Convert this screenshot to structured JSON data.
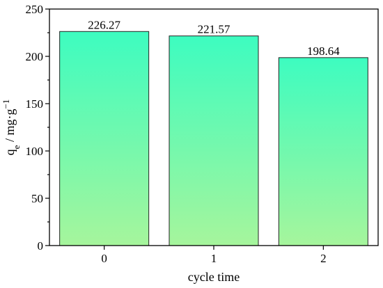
{
  "chart_data": {
    "type": "bar",
    "categories": [
      "0",
      "1",
      "2"
    ],
    "values": [
      226.27,
      221.57,
      198.64
    ],
    "data_labels": [
      "226.27",
      "221.57",
      "198.64"
    ],
    "title": "",
    "xlabel": "cycle time",
    "ylabel": {
      "prefix": "q",
      "subscript": "e",
      "suffix": " / mg·g",
      "superscript": "−1"
    },
    "ylim": [
      0,
      250
    ],
    "yticks": [
      0,
      50,
      100,
      150,
      200,
      250
    ],
    "ytick_labels": [
      "0",
      "50",
      "100",
      "150",
      "200",
      "250"
    ],
    "grid": false,
    "legend": "none",
    "colors": {
      "bar_top": "#3dfcc0",
      "bar_bottom": "#a6f59c",
      "outline": "#222222"
    }
  }
}
